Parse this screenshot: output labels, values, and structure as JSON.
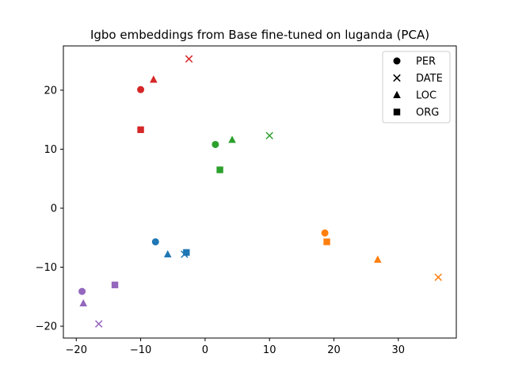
{
  "chart_data": {
    "type": "scatter",
    "title": "Igbo embeddings from Base fine-tuned on luganda (PCA)",
    "xlabel": "",
    "ylabel": "",
    "xlim": [
      -22,
      39
    ],
    "ylim": [
      -22,
      27.5
    ],
    "xticks": [
      -20,
      -10,
      0,
      10,
      20,
      30
    ],
    "yticks": [
      -20,
      -10,
      0,
      10,
      20
    ],
    "grid": false,
    "legend_placement": "top-right",
    "legend": [
      {
        "label": "PER",
        "marker": "circle"
      },
      {
        "label": "DATE",
        "marker": "x"
      },
      {
        "label": "LOC",
        "marker": "triangle"
      },
      {
        "label": "ORG",
        "marker": "square"
      }
    ],
    "groups": [
      {
        "color": "#d62728",
        "points": [
          {
            "marker": "circle",
            "x": -10,
            "y": 20.1
          },
          {
            "marker": "x",
            "x": -2.5,
            "y": 25.3
          },
          {
            "marker": "triangle",
            "x": -8,
            "y": 21.8
          },
          {
            "marker": "square",
            "x": -10,
            "y": 13.3
          }
        ]
      },
      {
        "color": "#2ca02c",
        "points": [
          {
            "marker": "circle",
            "x": 1.6,
            "y": 10.8
          },
          {
            "marker": "x",
            "x": 10,
            "y": 12.3
          },
          {
            "marker": "triangle",
            "x": 4.2,
            "y": 11.6
          },
          {
            "marker": "square",
            "x": 2.3,
            "y": 6.5
          }
        ]
      },
      {
        "color": "#1f77b4",
        "points": [
          {
            "marker": "circle",
            "x": -7.7,
            "y": -5.7
          },
          {
            "marker": "x",
            "x": -3.2,
            "y": -7.8
          },
          {
            "marker": "triangle",
            "x": -5.8,
            "y": -7.8
          },
          {
            "marker": "square",
            "x": -2.9,
            "y": -7.5
          }
        ]
      },
      {
        "color": "#ff7f0e",
        "points": [
          {
            "marker": "circle",
            "x": 18.6,
            "y": -4.2
          },
          {
            "marker": "x",
            "x": 36.2,
            "y": -11.7
          },
          {
            "marker": "triangle",
            "x": 26.8,
            "y": -8.7
          },
          {
            "marker": "square",
            "x": 18.9,
            "y": -5.7
          }
        ]
      },
      {
        "color": "#9467bd",
        "points": [
          {
            "marker": "circle",
            "x": -19.1,
            "y": -14.1
          },
          {
            "marker": "x",
            "x": -16.5,
            "y": -19.6
          },
          {
            "marker": "triangle",
            "x": -18.9,
            "y": -16.1
          },
          {
            "marker": "square",
            "x": -14,
            "y": -13
          }
        ]
      }
    ]
  }
}
